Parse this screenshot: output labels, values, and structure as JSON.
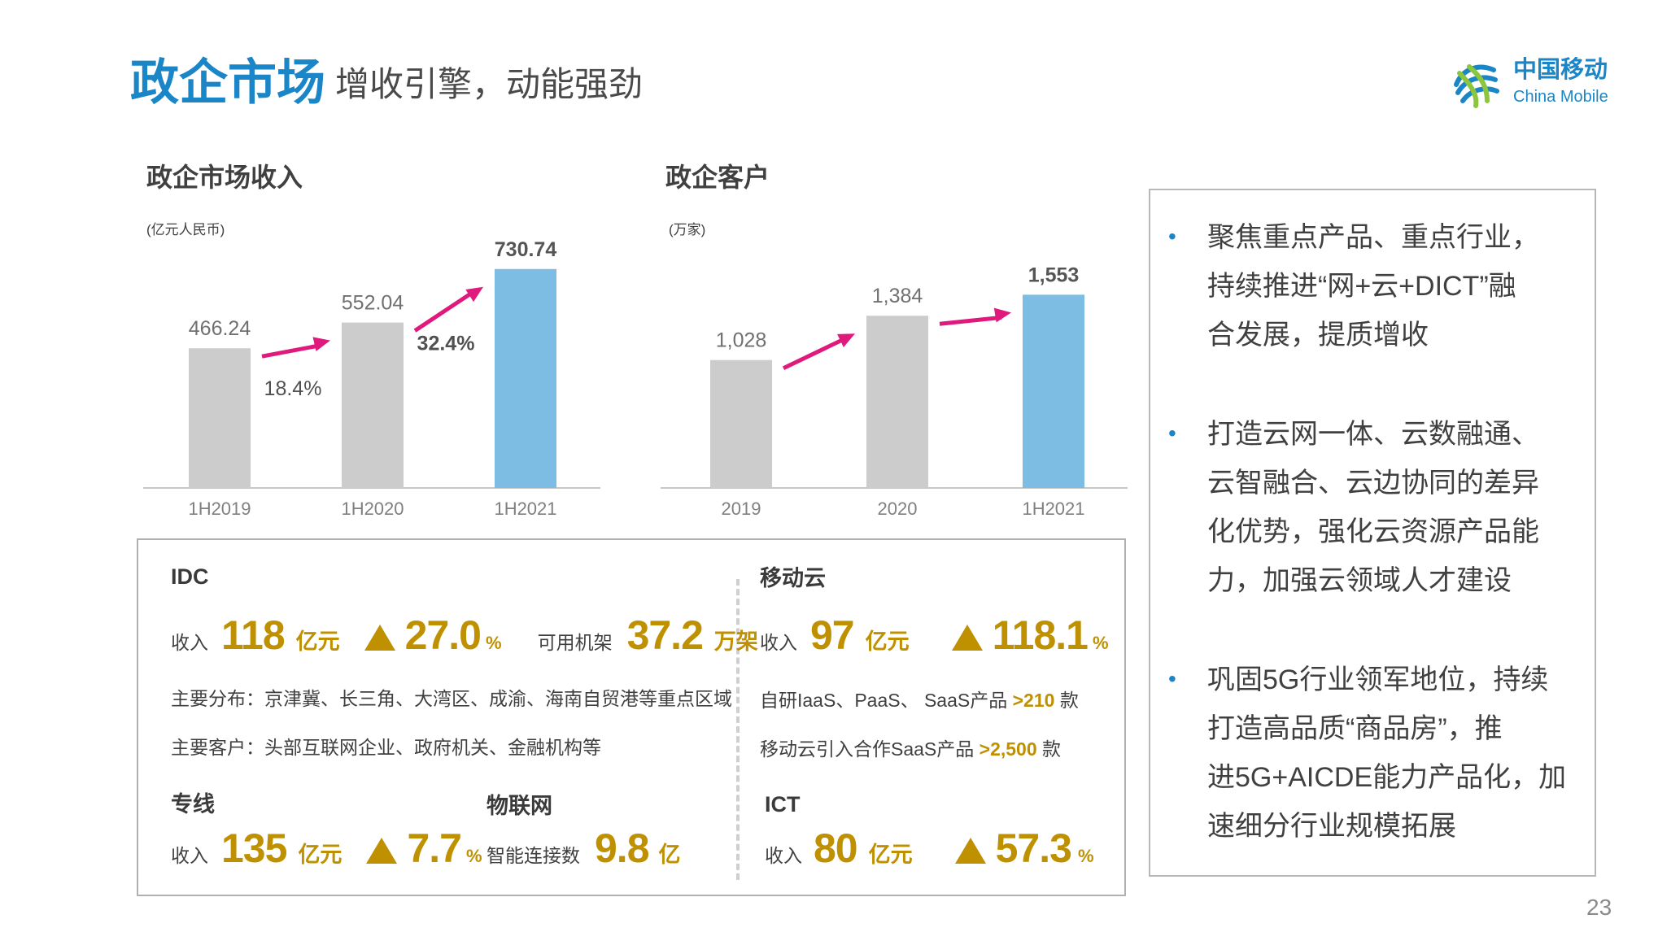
{
  "header": {
    "title": "政企市场",
    "subtitle": "增收引擎，动能强劲",
    "logo_cn": "中国移动",
    "logo_en": "China Mobile"
  },
  "colors": {
    "accent": "#1a86c8",
    "gold": "#bf9000",
    "arrow": "#e0197d",
    "bar_gray": "#cccccc",
    "bar_blue": "#7dbde3"
  },
  "chart_data": [
    {
      "type": "bar",
      "title": "政企市场收入",
      "unit": "(亿元人民币)",
      "categories": [
        "1H2019",
        "1H2020",
        "1H2021"
      ],
      "values": [
        466.24,
        552.04,
        730.74
      ],
      "labels": [
        "466.24",
        "552.04",
        "730.74"
      ],
      "growth": [
        "18.4%",
        "32.4%"
      ],
      "ylim": [
        0,
        760
      ]
    },
    {
      "type": "bar",
      "title": "政企客户",
      "unit": "(万家)",
      "categories": [
        "2019",
        "2020",
        "1H2021"
      ],
      "values": [
        1028,
        1384,
        1553
      ],
      "labels": [
        "1,028",
        "1,384",
        "1,553"
      ],
      "growth": [],
      "ylim": [
        0,
        1830
      ]
    }
  ],
  "idc": {
    "title": "IDC",
    "revenue_label": "收入",
    "revenue_value": "118",
    "revenue_unit": "亿元",
    "growth_value": "27.0",
    "growth_unit": "%",
    "rack_label": "可用机架",
    "rack_value": "37.2",
    "rack_unit": "万架",
    "distribution": "主要分布：京津冀、长三角、大湾区、成渝、海南自贸港等重点区域",
    "customers": "主要客户：头部互联网企业、政府机关、金融机构等"
  },
  "mobile_cloud": {
    "title": "移动云",
    "revenue_label": "收入",
    "revenue_value": "97",
    "revenue_unit": "亿元",
    "growth_value": "118.1",
    "growth_unit": "%",
    "line1_prefix": "自研IaaS、PaaS、 SaaS产品",
    "line1_value": ">210",
    "line1_suffix": "款",
    "line2_prefix": "移动云引入合作SaaS产品",
    "line2_value": ">2,500",
    "line2_suffix": "款"
  },
  "dedicated_line": {
    "title": "专线",
    "revenue_label": "收入",
    "revenue_value": "135",
    "revenue_unit": "亿元",
    "growth_value": "7.7",
    "growth_unit": "%"
  },
  "iot": {
    "title": "物联网",
    "conn_label": "智能连接数",
    "conn_value": "9.8",
    "conn_unit": "亿"
  },
  "ict": {
    "title": "ICT",
    "revenue_label": "收入",
    "revenue_value": "80",
    "revenue_unit": "亿元",
    "growth_value": "57.3",
    "growth_unit": "%"
  },
  "panel": {
    "bullets": [
      [
        "聚焦重点产品、重点行业，",
        "持续推进“网+云+DICT”融",
        "合发展，提质增收"
      ],
      [
        "打造云网一体、云数融通、",
        "云智融合、云边协同的差异",
        "化优势，强化云资源产品能",
        "力，加强云领域人才建设"
      ],
      [
        "巩固5G行业领军地位，持续",
        "打造高品质“商品房”，推",
        "进5G+AICDE能力产品化，加",
        "速细分行业规模拓展"
      ]
    ]
  },
  "page_number": "23"
}
